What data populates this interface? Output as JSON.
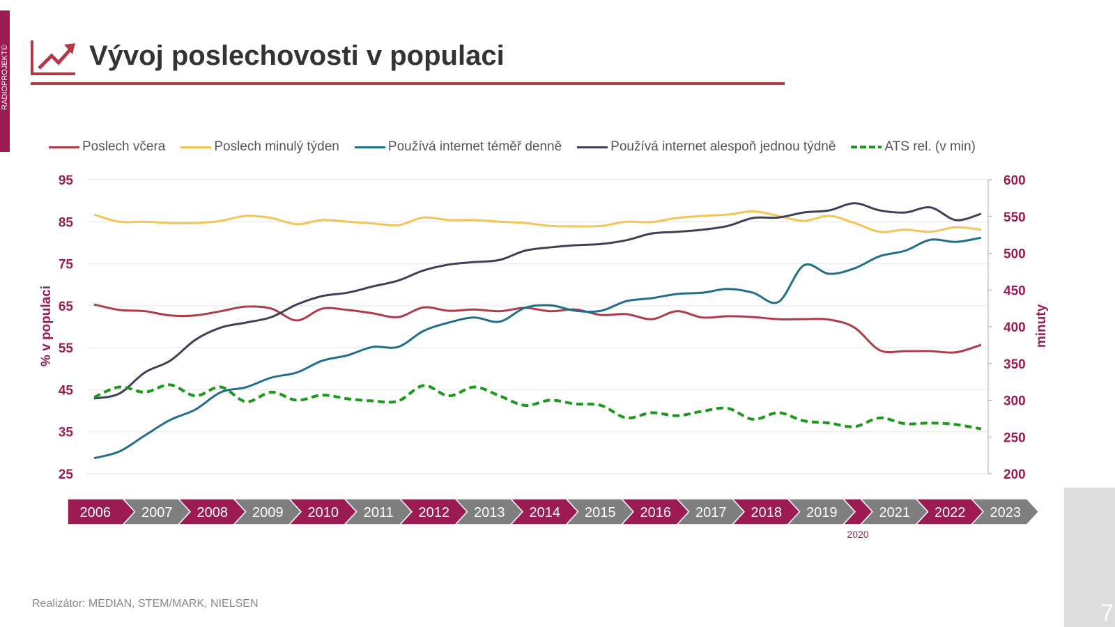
{
  "brand": "RADIOPROJEKT©",
  "title": "Vývoj poslechovosti v populaci",
  "footer": "Realizátor: MEDIAN, STEM/MARK, NIELSEN",
  "page_number": "7",
  "colors": {
    "accent": "#9b1b52",
    "gray": "#7f7f7f"
  },
  "timeline": {
    "years": [
      "2006",
      "2007",
      "2008",
      "2009",
      "2010",
      "2011",
      "2012",
      "2013",
      "2014",
      "2015",
      "2016",
      "2017",
      "2018",
      "2019",
      "2020",
      "2021",
      "2022",
      "2023"
    ],
    "narrow_label": "2020"
  },
  "chart_data": {
    "type": "line",
    "ylabel": "% v populaci",
    "y2label": "minuty",
    "ylim": [
      25,
      95
    ],
    "yticks": [
      "95",
      "85",
      "75",
      "65",
      "55",
      "45",
      "35",
      "25"
    ],
    "y2lim": [
      200,
      600
    ],
    "y2ticks": [
      "600",
      "550",
      "500",
      "450",
      "400",
      "350",
      "300",
      "250",
      "200"
    ],
    "grid": true,
    "legend": "top",
    "x": [
      2006,
      2006.5,
      2007,
      2007.5,
      2008,
      2008.5,
      2009,
      2009.5,
      2010,
      2010.5,
      2011,
      2011.5,
      2012,
      2012.5,
      2013,
      2013.5,
      2014,
      2014.5,
      2015,
      2015.5,
      2016,
      2016.5,
      2017,
      2017.5,
      2018,
      2018.5,
      2019,
      2019.5,
      2020,
      2020.5,
      2021,
      2021.5,
      2022,
      2022.5,
      2023,
      2023.5
    ],
    "series": [
      {
        "name": "Poslech včera",
        "color": "#b03a48",
        "axis": "left",
        "dash": false,
        "values": [
          65.3,
          64,
          63.7,
          62.7,
          62.7,
          63.7,
          64.8,
          64.3,
          61.5,
          64.3,
          64,
          63.2,
          62.3,
          64.6,
          63.8,
          64.1,
          63.7,
          64.5,
          63.7,
          64.1,
          62.8,
          63,
          61.8,
          63.7,
          62.2,
          62.5,
          62.3,
          61.8,
          61.8,
          61.7,
          59.8,
          54.4,
          54.2,
          54.2,
          53.9,
          55.7
        ]
      },
      {
        "name": "Poslech minulý týden",
        "color": "#f5c356",
        "axis": "left",
        "dash": false,
        "values": [
          86.7,
          85,
          85,
          84.7,
          84.7,
          85.2,
          86.4,
          85.9,
          84.4,
          85.4,
          85,
          84.6,
          84.2,
          86,
          85.4,
          85.4,
          85,
          84.7,
          84,
          83.9,
          84,
          85,
          84.9,
          85.9,
          86.4,
          86.7,
          87.5,
          86.4,
          85.2,
          86.4,
          84.7,
          82.6,
          83.1,
          82.6,
          83.7,
          83.1
        ]
      },
      {
        "name": "Používá internet téměř denně",
        "color": "#1f6e8c",
        "axis": "left",
        "dash": false,
        "values": [
          28.7,
          30.3,
          34.1,
          37.8,
          40.3,
          44.4,
          45.6,
          47.9,
          49.1,
          51.9,
          53.2,
          55.2,
          55.2,
          59,
          61,
          62.2,
          61.2,
          64.5,
          65.1,
          63.8,
          63.8,
          66.1,
          66.8,
          67.8,
          68.1,
          69,
          68.1,
          65.9,
          74.6,
          72.6,
          73.9,
          76.8,
          78.1,
          80.7,
          80.2,
          81.2
        ]
      },
      {
        "name": "Používá internet alespoň jednou týdně",
        "color": "#3f3f5a",
        "axis": "left",
        "dash": false,
        "values": [
          42.9,
          44.1,
          49.1,
          51.9,
          56.9,
          59.8,
          61,
          62.3,
          65.3,
          67.3,
          68.1,
          69.6,
          71,
          73.4,
          74.8,
          75.4,
          75.9,
          78.1,
          78.9,
          79.4,
          79.7,
          80.6,
          82.2,
          82.6,
          83.1,
          84,
          85.9,
          86,
          87.2,
          87.7,
          89.4,
          87.7,
          87.2,
          88.4,
          85.4,
          86.9
        ]
      },
      {
        "name": "ATS rel. (v min)",
        "color": "#1a9a1a",
        "axis": "right",
        "dash": true,
        "values": [
          304,
          318,
          311,
          321,
          306,
          318,
          298,
          311,
          300,
          307,
          302,
          299,
          299,
          320,
          306,
          318,
          306,
          293,
          300,
          295,
          293,
          276,
          283,
          279,
          285,
          289,
          274,
          283,
          272,
          269,
          264,
          276,
          268,
          269,
          267,
          261
        ]
      }
    ]
  }
}
